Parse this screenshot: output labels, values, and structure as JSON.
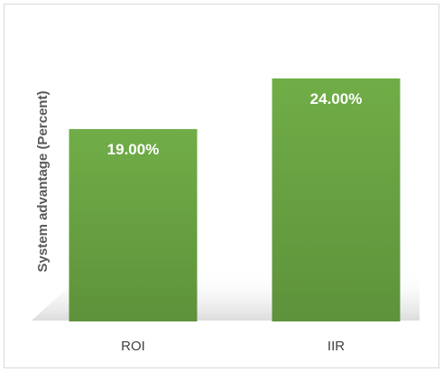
{
  "chart_data": {
    "type": "bar",
    "categories": [
      "ROI",
      "IIR"
    ],
    "values": [
      19.0,
      24.0
    ],
    "data_labels": [
      "19.00%",
      "24.00%"
    ],
    "title": "",
    "xlabel": "",
    "ylabel": "System advantage (Percent)",
    "ylim": [
      0,
      25.5
    ],
    "grid": false,
    "legend": "none",
    "colors": {
      "bar_top": "#70ad47",
      "bar_bottom": "#5e923b",
      "label_text": "#ffffff",
      "axis_label": "#595959",
      "tick_label": "#404040",
      "border": "#d9d9d9"
    }
  }
}
